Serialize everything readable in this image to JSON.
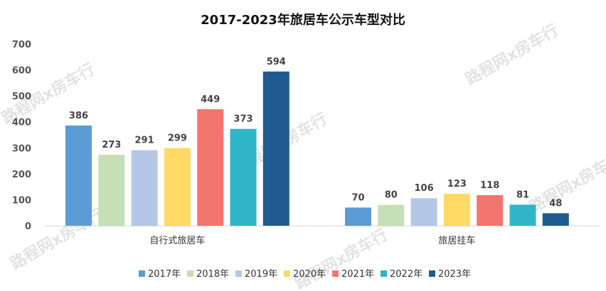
{
  "chart_data": {
    "type": "bar",
    "title": "2017-2023年旅居车公示车型对比",
    "categories": [
      "自行式旅居车",
      "旅居挂车"
    ],
    "series": [
      {
        "name": "2017年",
        "color": "#5b9bd5",
        "values": [
          386,
          70
        ]
      },
      {
        "name": "2018年",
        "color": "#c5e0b4",
        "values": [
          273,
          80
        ]
      },
      {
        "name": "2019年",
        "color": "#b4c7e7",
        "values": [
          291,
          106
        ]
      },
      {
        "name": "2020年",
        "color": "#ffd966",
        "values": [
          299,
          123
        ]
      },
      {
        "name": "2021年",
        "color": "#f4756e",
        "values": [
          449,
          118
        ]
      },
      {
        "name": "2022年",
        "color": "#2fb5c8",
        "values": [
          373,
          81
        ]
      },
      {
        "name": "2023年",
        "color": "#1f5b91",
        "values": [
          594,
          48
        ]
      }
    ],
    "ylim": [
      0,
      700
    ],
    "yticks": [
      0,
      100,
      200,
      300,
      400,
      500,
      600,
      700
    ],
    "xlabel": "",
    "ylabel": "",
    "grid": false,
    "legend_position": "bottom"
  },
  "watermark": "路程网x房车行"
}
